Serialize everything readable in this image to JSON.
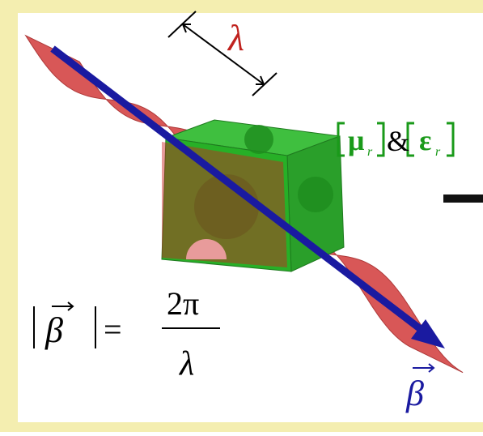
{
  "wavelength_label": "λ",
  "material": {
    "mu": "μ",
    "mu_sub": "r",
    "amp": "&",
    "eps": "ε",
    "eps_sub": "r"
  },
  "formula": {
    "lhs": "β",
    "equals": "=",
    "numerator": "2π",
    "denominator": "λ"
  },
  "vector_label": "β"
}
